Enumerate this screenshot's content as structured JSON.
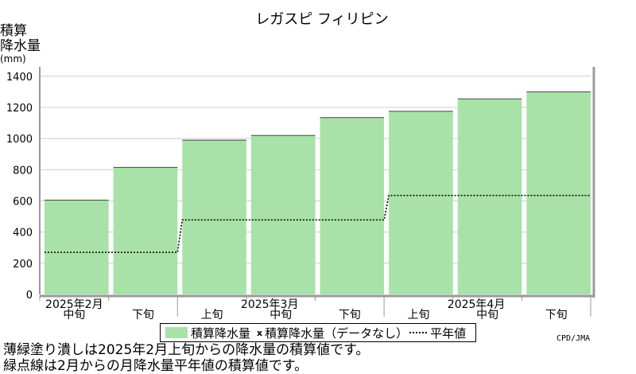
{
  "chart_data": {
    "type": "area",
    "title": "レガスピ フィリピン",
    "ylabel_lines": [
      "積算",
      "降水量"
    ],
    "yunit": "(mm)",
    "ylim": [
      0,
      1450
    ],
    "yticks": [
      0,
      200,
      400,
      600,
      800,
      1000,
      1200,
      1400
    ],
    "grid": true,
    "periods": [
      "2025年2月中旬",
      "2025年2月下旬",
      "2025年3月上旬",
      "2025年3月中旬",
      "2025年3月下旬",
      "2025年4月上旬",
      "2025年4月中旬",
      "2025年4月下旬"
    ],
    "period_labels": [
      "中旬",
      "下旬",
      "上旬",
      "中旬",
      "下旬",
      "上旬",
      "中旬",
      "下旬"
    ],
    "month_labels": [
      {
        "text": "2025年2月",
        "period_index": 0
      },
      {
        "text": "2025年3月",
        "period_index": 3
      },
      {
        "text": "2025年4月",
        "period_index": 6
      }
    ],
    "series": [
      {
        "name": "積算降水量",
        "values": [
          605,
          815,
          990,
          1020,
          1135,
          1175,
          1255,
          1300
        ],
        "color": "#a8e2a8"
      },
      {
        "name": "平年値",
        "values": [
          270,
          270,
          478,
          478,
          478,
          635,
          635,
          635
        ],
        "style": "dotted",
        "color": "#000000"
      }
    ]
  },
  "legend": {
    "item1": "積算降水量",
    "item2_mark": "x",
    "item2": "積算降水量（データなし）",
    "item3": "平年値"
  },
  "footnotes": [
    "薄緑塗り潰しは2025年2月上旬からの降水量の積算値です。",
    "緑点線は2月からの月降水量平年値の積算値です。"
  ],
  "source": "CPD/JMA"
}
